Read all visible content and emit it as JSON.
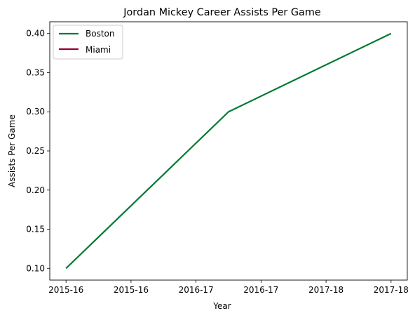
{
  "chart_data": {
    "type": "line",
    "title": "Jordan Mickey Career Assists Per Game",
    "xlabel": "Year",
    "ylabel": "Assists Per Game",
    "x_tick_labels": [
      "2015-16",
      "2015-16",
      "2016-17",
      "2016-17",
      "2017-18",
      "2017-18"
    ],
    "x_range": [
      -0.075,
      1.575
    ],
    "ylim": [
      0.085,
      0.415
    ],
    "y_ticks": [
      0.1,
      0.15,
      0.2,
      0.25,
      0.3,
      0.35,
      0.4
    ],
    "y_tick_labels": [
      "0.10",
      "0.15",
      "0.20",
      "0.25",
      "0.30",
      "0.35",
      "0.40"
    ],
    "grid": false,
    "legend_position": "top-left",
    "series": [
      {
        "name": "Boston",
        "color": "#007a33",
        "points": [
          {
            "x": 0.0,
            "y": 0.1
          },
          {
            "x": 0.75,
            "y": 0.3
          },
          {
            "x": 1.5,
            "y": 0.4
          }
        ]
      },
      {
        "name": "Miami",
        "color": "#98002e",
        "points": []
      }
    ]
  }
}
